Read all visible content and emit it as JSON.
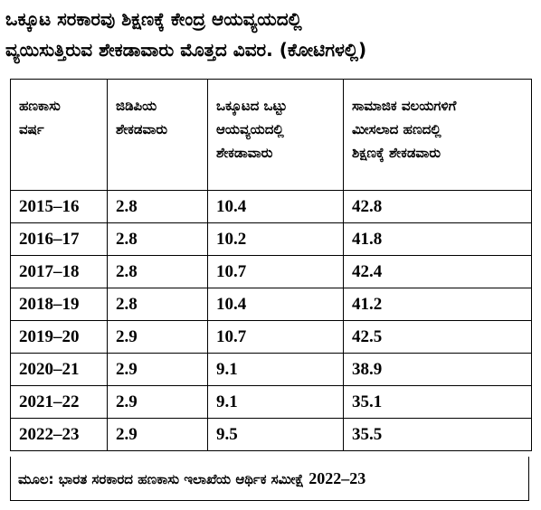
{
  "title": {
    "line1": "ಒಕ್ಕೂಟ ಸರಕಾರವು ಶಿಕ್ಷಣಕ್ಕೆ ಕೇಂದ್ರ ಆಯವ್ಯಯದಲ್ಲಿ",
    "line2": "ವ್ಯಯಿಸುತ್ತಿರುವ ಶೇಕಡಾವಾರು ಮೊತ್ತದ ವಿವರ. (ಕೋಟಿಗಳಲ್ಲಿ)"
  },
  "table": {
    "headers": [
      [
        "ಹಣಕಾಸು",
        "ವರ್ಷ"
      ],
      [
        "ಜಿಡಿಪಿಯ",
        "ಶೇಕಡವಾರು"
      ],
      [
        "ಒಕ್ಕೂಟದ ಒಟ್ಟು",
        "ಆಯವ್ಯಯದಲ್ಲಿ",
        "ಶೇಕಡಾವಾರು"
      ],
      [
        "ಸಾಮಾಜಿಕ ವಲಯಗಳಿಗೆ",
        "ಮೀಸಲಾದ ಹಣದಲ್ಲಿ",
        "ಶಿಕ್ಷಣಕ್ಕೆ ಶೇಕಡವಾರು"
      ]
    ],
    "rows": [
      [
        "2015–16",
        "2.8",
        "10.4",
        "42.8"
      ],
      [
        "2016–17",
        "2.8",
        "10.2",
        "41.8"
      ],
      [
        "2017–18",
        "2.8",
        "10.7",
        "42.4"
      ],
      [
        "2018–19",
        "2.8",
        "10.4",
        "41.2"
      ],
      [
        "2019–20",
        "2.9",
        "10.7",
        "42.5"
      ],
      [
        "2020–21",
        "2.9",
        "9.1",
        "38.9"
      ],
      [
        "2021–22",
        "2.9",
        "9.1",
        "35.1"
      ],
      [
        "2022–23",
        "2.9",
        "9.5",
        "35.5"
      ]
    ]
  },
  "source": {
    "text": "ಮೂಲ: ಭಾರತ ಸರಕಾರದ ಹಣಕಾಸು ಇಲಾಖೆಯ ಆರ್ಥಿಕ ಸಮೀಕ್ಷೆ",
    "year": "2022–23"
  }
}
